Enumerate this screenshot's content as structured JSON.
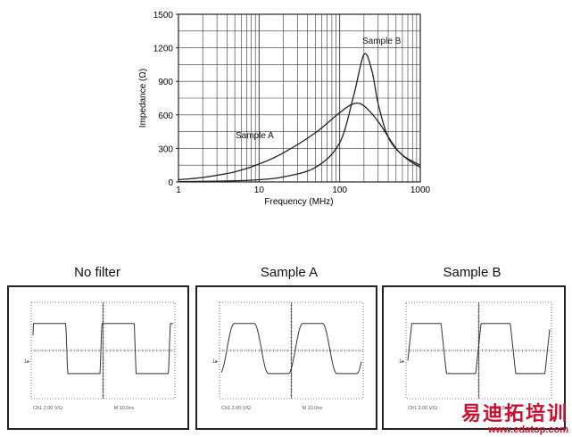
{
  "chart_data": [
    {
      "type": "line",
      "title": "",
      "xlabel": "Frequency (MHz)",
      "ylabel": "Impedance (Ω)",
      "xscale": "log",
      "xlim": [
        1,
        1000
      ],
      "ylim": [
        0,
        1500
      ],
      "grid": true,
      "x_ticks": [
        1,
        10,
        100,
        1000
      ],
      "x_tick_labels": [
        "1",
        "10",
        "100",
        "1000"
      ],
      "y_ticks": [
        0,
        300,
        600,
        900,
        1200,
        1500
      ],
      "y_tick_labels": [
        "0",
        "300",
        "600",
        "900",
        "1200",
        "1500"
      ],
      "series": [
        {
          "name": "Sample A",
          "points": [
            [
              1,
              20
            ],
            [
              2,
              40
            ],
            [
              5,
              90
            ],
            [
              10,
              160
            ],
            [
              20,
              260
            ],
            [
              50,
              440
            ],
            [
              100,
              620
            ],
            [
              150,
              700
            ],
            [
              200,
              680
            ],
            [
              300,
              540
            ],
            [
              500,
              300
            ],
            [
              700,
              200
            ],
            [
              1000,
              130
            ]
          ]
        },
        {
          "name": "Sample B",
          "points": [
            [
              1,
              2
            ],
            [
              5,
              10
            ],
            [
              10,
              20
            ],
            [
              20,
              45
            ],
            [
              50,
              130
            ],
            [
              100,
              350
            ],
            [
              150,
              780
            ],
            [
              200,
              1140
            ],
            [
              250,
              1000
            ],
            [
              300,
              700
            ],
            [
              400,
              400
            ],
            [
              600,
              240
            ],
            [
              1000,
              150
            ]
          ]
        }
      ],
      "annotations": [
        "Sample A",
        "Sample B"
      ]
    }
  ],
  "scopes": [
    {
      "title": "No filter",
      "ch_label": "Ch1",
      "ch_value": "2.00 V/Ω",
      "time_label": "M 10.0ns",
      "shape": "square"
    },
    {
      "title": "Sample A",
      "ch_label": "Ch1",
      "ch_value": "2.00 V/Ω",
      "time_label": "M 10.0ns",
      "shape": "rounded"
    },
    {
      "title": "Sample B",
      "ch_label": "Ch1",
      "ch_value": "2.00 V/Ω",
      "time_label": "M 10.0ns",
      "shape": "slight"
    }
  ],
  "watermark": {
    "cn": "易迪拓培训",
    "url": "www.edatop.com"
  }
}
